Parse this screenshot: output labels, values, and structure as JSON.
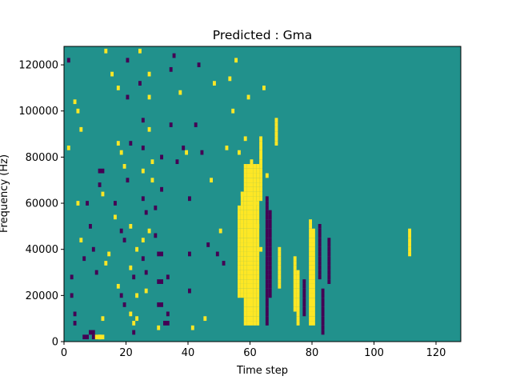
{
  "chart_data": {
    "type": "heatmap",
    "title": "Predicted : Gma",
    "xlabel": "Time step",
    "ylabel": "Frequency (Hz)",
    "xlim": [
      0,
      128
    ],
    "ylim": [
      0,
      128000
    ],
    "x_ticks": [
      0,
      20,
      40,
      60,
      80,
      100,
      120
    ],
    "x_tick_labels": [
      "0",
      "20",
      "40",
      "60",
      "80",
      "100",
      "120"
    ],
    "y_ticks": [
      0,
      20000,
      40000,
      60000,
      80000,
      100000,
      120000
    ],
    "y_tick_labels": [
      "0",
      "20000",
      "40000",
      "60000",
      "80000",
      "100000",
      "120000"
    ],
    "grid": false,
    "levels": [
      "low",
      "mid",
      "high"
    ],
    "colors": {
      "low": "#440154",
      "mid": "#21918c",
      "high": "#fde725"
    },
    "background_level": "mid",
    "cells": [
      [
        1,
        84000,
        1,
        "high"
      ],
      [
        2,
        28000,
        1,
        "low"
      ],
      [
        2,
        20000,
        1,
        "low"
      ],
      [
        3,
        12000,
        1,
        "low"
      ],
      [
        3,
        8000,
        1,
        "low"
      ],
      [
        4,
        60000,
        1,
        "high"
      ],
      [
        6,
        2000,
        2,
        "low"
      ],
      [
        8,
        4000,
        2,
        "low"
      ],
      [
        9,
        2000,
        2,
        "low"
      ],
      [
        10,
        2000,
        2,
        "high"
      ],
      [
        11,
        2000,
        2,
        "high"
      ],
      [
        12,
        10000,
        1,
        "high"
      ],
      [
        1,
        122000,
        1,
        "low"
      ],
      [
        3,
        104000,
        1,
        "high"
      ],
      [
        4,
        100000,
        1,
        "high"
      ],
      [
        5,
        92000,
        1,
        "high"
      ],
      [
        5,
        44000,
        1,
        "high"
      ],
      [
        6,
        36000,
        1,
        "low"
      ],
      [
        7,
        60000,
        1,
        "low"
      ],
      [
        8,
        50000,
        1,
        "low"
      ],
      [
        9,
        40000,
        1,
        "low"
      ],
      [
        10,
        30000,
        1,
        "low"
      ],
      [
        11,
        74000,
        2,
        "low"
      ],
      [
        11,
        68000,
        1,
        "low"
      ],
      [
        12,
        64000,
        1,
        "high"
      ],
      [
        13,
        34000,
        1,
        "high"
      ],
      [
        14,
        38000,
        1,
        "high"
      ],
      [
        13,
        126000,
        1,
        "high"
      ],
      [
        15,
        116000,
        1,
        "high"
      ],
      [
        17,
        110000,
        1,
        "high"
      ],
      [
        16,
        60000,
        1,
        "low"
      ],
      [
        16,
        54000,
        1,
        "high"
      ],
      [
        18,
        48000,
        1,
        "low"
      ],
      [
        19,
        44000,
        1,
        "low"
      ],
      [
        17,
        24000,
        1,
        "high"
      ],
      [
        18,
        20000,
        1,
        "low"
      ],
      [
        19,
        16000,
        1,
        "low"
      ],
      [
        20,
        122000,
        1,
        "low"
      ],
      [
        20,
        106000,
        1,
        "low"
      ],
      [
        17,
        86000,
        1,
        "high"
      ],
      [
        18,
        82000,
        1,
        "high"
      ],
      [
        19,
        76000,
        1,
        "high"
      ],
      [
        20,
        70000,
        1,
        "low"
      ],
      [
        21,
        86000,
        1,
        "low"
      ],
      [
        21,
        50000,
        1,
        "high"
      ],
      [
        21,
        32000,
        1,
        "high"
      ],
      [
        22,
        28000,
        1,
        "low"
      ],
      [
        21,
        12000,
        1,
        "high"
      ],
      [
        22,
        8000,
        1,
        "high"
      ],
      [
        22,
        4000,
        1,
        "low"
      ],
      [
        23,
        40000,
        1,
        "high"
      ],
      [
        23,
        20000,
        1,
        "high"
      ],
      [
        23,
        10000,
        1,
        "high"
      ],
      [
        24,
        126000,
        1,
        "high"
      ],
      [
        24,
        112000,
        1,
        "low"
      ],
      [
        25,
        96000,
        1,
        "low"
      ],
      [
        25,
        84000,
        1,
        "low"
      ],
      [
        25,
        74000,
        1,
        "high"
      ],
      [
        25,
        62000,
        1,
        "low"
      ],
      [
        26,
        56000,
        1,
        "low"
      ],
      [
        25,
        44000,
        1,
        "high"
      ],
      [
        25,
        36000,
        1,
        "low"
      ],
      [
        26,
        30000,
        1,
        "low"
      ],
      [
        26,
        22000,
        1,
        "high"
      ],
      [
        27,
        116000,
        1,
        "high"
      ],
      [
        27,
        106000,
        1,
        "high"
      ],
      [
        27,
        92000,
        1,
        "high"
      ],
      [
        27,
        48000,
        1,
        "high"
      ],
      [
        28,
        78000,
        1,
        "high"
      ],
      [
        28,
        70000,
        1,
        "high"
      ],
      [
        29,
        58000,
        1,
        "low"
      ],
      [
        29,
        46000,
        1,
        "low"
      ],
      [
        30,
        38000,
        2,
        "low"
      ],
      [
        30,
        26000,
        2,
        "low"
      ],
      [
        30,
        16000,
        2,
        "low"
      ],
      [
        30,
        6000,
        1,
        "high"
      ],
      [
        31,
        80000,
        1,
        "low"
      ],
      [
        31,
        66000,
        1,
        "low"
      ],
      [
        32,
        8000,
        2,
        "low"
      ],
      [
        33,
        28000,
        1,
        "low"
      ],
      [
        33,
        12000,
        1,
        "low"
      ],
      [
        34,
        118000,
        1,
        "low"
      ],
      [
        34,
        94000,
        1,
        "low"
      ],
      [
        35,
        124000,
        1,
        "low"
      ],
      [
        36,
        78000,
        1,
        "low"
      ],
      [
        37,
        108000,
        1,
        "high"
      ],
      [
        38,
        84000,
        1,
        "low"
      ],
      [
        39,
        82000,
        1,
        "high"
      ],
      [
        40,
        62000,
        1,
        "low"
      ],
      [
        40,
        38000,
        1,
        "low"
      ],
      [
        40,
        22000,
        1,
        "low"
      ],
      [
        41,
        6000,
        1,
        "high"
      ],
      [
        43,
        120000,
        1,
        "low"
      ],
      [
        42,
        94000,
        1,
        "low"
      ],
      [
        44,
        82000,
        1,
        "low"
      ],
      [
        46,
        42000,
        1,
        "low"
      ],
      [
        47,
        70000,
        1,
        "high"
      ],
      [
        48,
        112000,
        1,
        "high"
      ],
      [
        49,
        38000,
        1,
        "low"
      ],
      [
        50,
        48000,
        1,
        "high"
      ],
      [
        51,
        34000,
        1,
        "low"
      ],
      [
        45,
        10000,
        1,
        "high"
      ],
      [
        52,
        84000,
        1,
        "high"
      ],
      [
        53,
        114000,
        1,
        "high"
      ],
      [
        54,
        100000,
        1,
        "high"
      ],
      [
        55,
        122000,
        1,
        "high"
      ],
      [
        56,
        82000,
        1,
        "high"
      ],
      [
        57,
        64000,
        1,
        "high"
      ],
      [
        58,
        88000,
        1,
        "high"
      ],
      [
        59,
        106000,
        1,
        "high"
      ],
      [
        60,
        78000,
        1,
        "high"
      ],
      [
        61,
        60000,
        1,
        "high"
      ],
      [
        62,
        50000,
        1,
        "high"
      ],
      [
        63,
        40000,
        1,
        "high"
      ],
      [
        64,
        110000,
        1,
        "high"
      ],
      [
        65,
        72000,
        1,
        "high"
      ]
    ]
  }
}
